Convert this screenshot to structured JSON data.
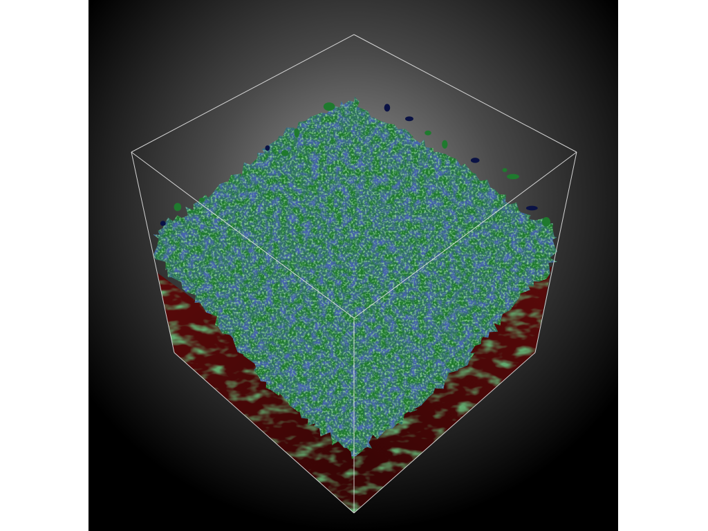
{
  "viewer": {
    "background_center": "#9a9a9a",
    "background_edge": "#000000",
    "outline_color": "#e8e8e8"
  },
  "volume": {
    "colors": {
      "top_green": "#1f7a2e",
      "top_green_light": "#3fa14a",
      "top_blue": "#10206e",
      "top_blue_dark": "#0a1245",
      "side_red": "#5a0a0a",
      "side_red_dark": "#3a0505",
      "side_green": "#1f6a2a"
    }
  }
}
